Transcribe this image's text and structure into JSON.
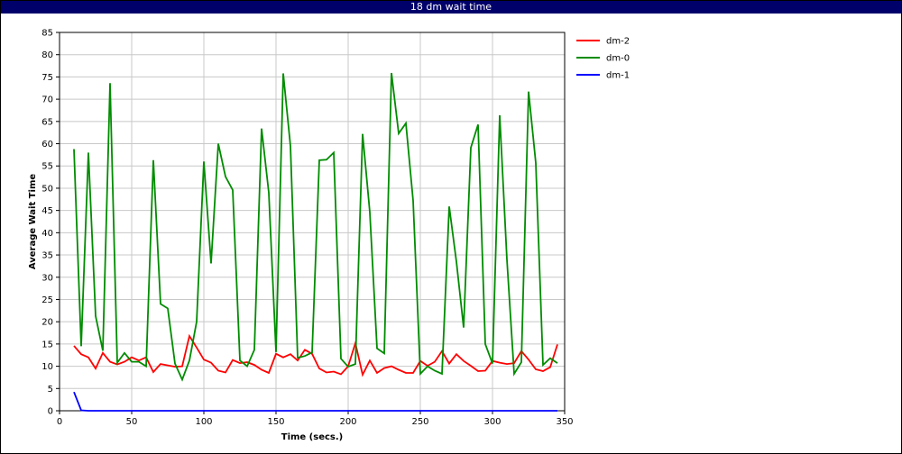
{
  "window": {
    "title": "18 dm wait time"
  },
  "chart_data": {
    "type": "line",
    "title": "18 dm wait time",
    "xlabel": "Time (secs.)",
    "ylabel": "Average Wait Time",
    "xlim": [
      0,
      350
    ],
    "ylim": [
      0,
      85
    ],
    "xticks": [
      0,
      50,
      100,
      150,
      200,
      250,
      300,
      350
    ],
    "yticks": [
      0,
      5,
      10,
      15,
      20,
      25,
      30,
      35,
      40,
      45,
      50,
      55,
      60,
      65,
      70,
      75,
      80,
      85
    ],
    "grid": true,
    "legend_position": "right",
    "series": [
      {
        "name": "dm-2",
        "color": "#ff0000",
        "points": [
          [
            10,
            14.6
          ],
          [
            15,
            12.7
          ],
          [
            20,
            12
          ],
          [
            25,
            9.5
          ],
          [
            30,
            13
          ],
          [
            35,
            11
          ],
          [
            40,
            10.4
          ],
          [
            45,
            11
          ],
          [
            50,
            12
          ],
          [
            55,
            11.3
          ],
          [
            60,
            12
          ],
          [
            65,
            8.7
          ],
          [
            70,
            10.5
          ],
          [
            75,
            10.2
          ],
          [
            80,
            9.9
          ],
          [
            85,
            10
          ],
          [
            90,
            16.8
          ],
          [
            95,
            14.2
          ],
          [
            100,
            11.5
          ],
          [
            105,
            10.8
          ],
          [
            110,
            9
          ],
          [
            115,
            8.6
          ],
          [
            120,
            11.4
          ],
          [
            125,
            10.7
          ],
          [
            130,
            10.9
          ],
          [
            135,
            10.3
          ],
          [
            140,
            9.2
          ],
          [
            145,
            8.5
          ],
          [
            150,
            12.8
          ],
          [
            155,
            12
          ],
          [
            160,
            12.7
          ],
          [
            165,
            11.3
          ],
          [
            170,
            13.7
          ],
          [
            175,
            12.8
          ],
          [
            180,
            9.5
          ],
          [
            185,
            8.6
          ],
          [
            190,
            8.8
          ],
          [
            195,
            8.2
          ],
          [
            200,
            10
          ],
          [
            205,
            15.2
          ],
          [
            210,
            8.1
          ],
          [
            215,
            11.3
          ],
          [
            220,
            8.5
          ],
          [
            225,
            9.6
          ],
          [
            230,
            10
          ],
          [
            235,
            9.2
          ],
          [
            240,
            8.5
          ],
          [
            245,
            8.5
          ],
          [
            250,
            11.2
          ],
          [
            255,
            10.1
          ],
          [
            260,
            11
          ],
          [
            265,
            13.4
          ],
          [
            270,
            10.6
          ],
          [
            275,
            12.7
          ],
          [
            280,
            11.2
          ],
          [
            285,
            10.1
          ],
          [
            290,
            8.9
          ],
          [
            295,
            9
          ],
          [
            300,
            11.2
          ],
          [
            305,
            10.8
          ],
          [
            310,
            10.5
          ],
          [
            315,
            10.7
          ],
          [
            320,
            13.4
          ],
          [
            325,
            11.5
          ],
          [
            330,
            9.3
          ],
          [
            335,
            8.9
          ],
          [
            340,
            9.8
          ],
          [
            345,
            14.9
          ]
        ]
      },
      {
        "name": "dm-0",
        "color": "#008c00",
        "points": [
          [
            10,
            58.8
          ],
          [
            15,
            14.5
          ],
          [
            20,
            58
          ],
          [
            25,
            21.3
          ],
          [
            30,
            13.5
          ],
          [
            35,
            73.6
          ],
          [
            40,
            10.8
          ],
          [
            45,
            13
          ],
          [
            50,
            11
          ],
          [
            55,
            11
          ],
          [
            60,
            10
          ],
          [
            65,
            56.3
          ],
          [
            70,
            24
          ],
          [
            75,
            23
          ],
          [
            80,
            10.6
          ],
          [
            85,
            7
          ],
          [
            90,
            11.3
          ],
          [
            95,
            20
          ],
          [
            100,
            56
          ],
          [
            105,
            33.1
          ],
          [
            110,
            60
          ],
          [
            115,
            52.6
          ],
          [
            120,
            49.6
          ],
          [
            125,
            11.3
          ],
          [
            130,
            10
          ],
          [
            135,
            13.7
          ],
          [
            140,
            63.4
          ],
          [
            145,
            49
          ],
          [
            150,
            13.2
          ],
          [
            155,
            75.8
          ],
          [
            160,
            59.5
          ],
          [
            165,
            11.9
          ],
          [
            170,
            12.3
          ],
          [
            175,
            13.1
          ],
          [
            180,
            56.3
          ],
          [
            185,
            56.4
          ],
          [
            190,
            58
          ],
          [
            195,
            11.7
          ],
          [
            200,
            9.9
          ],
          [
            205,
            10.5
          ],
          [
            210,
            62.2
          ],
          [
            215,
            44.6
          ],
          [
            220,
            14
          ],
          [
            225,
            12.9
          ],
          [
            230,
            75.9
          ],
          [
            235,
            62.3
          ],
          [
            240,
            64.6
          ],
          [
            245,
            47.2
          ],
          [
            250,
            8.3
          ],
          [
            255,
            10
          ],
          [
            260,
            9
          ],
          [
            265,
            8.3
          ],
          [
            270,
            45.9
          ],
          [
            275,
            33.5
          ],
          [
            280,
            18.7
          ],
          [
            285,
            59.1
          ],
          [
            290,
            64.3
          ],
          [
            295,
            15
          ],
          [
            300,
            10.6
          ],
          [
            305,
            66.4
          ],
          [
            310,
            34
          ],
          [
            315,
            8.3
          ],
          [
            320,
            10.9
          ],
          [
            325,
            71.7
          ],
          [
            330,
            55.7
          ],
          [
            335,
            10.3
          ],
          [
            340,
            11.8
          ],
          [
            345,
            10.7
          ]
        ]
      },
      {
        "name": "dm-1",
        "color": "#0000ff",
        "points": [
          [
            10,
            4.2
          ],
          [
            15,
            0.1
          ],
          [
            20,
            0
          ],
          [
            345,
            0
          ]
        ]
      }
    ]
  }
}
